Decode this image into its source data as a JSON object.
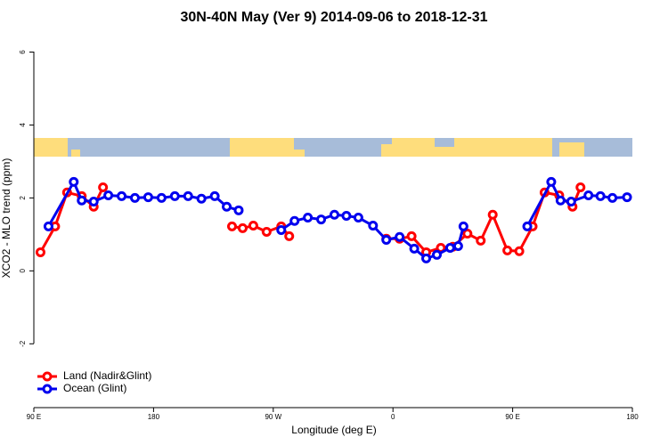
{
  "chart_data": {
    "type": "line",
    "title": "30N-40N May (Ver 9)   2014-09-06 to 2018-12-31",
    "x_label": "Longitude (deg E)",
    "y_label": "XCO2 - MLO trend (ppm)",
    "xlim": [
      90,
      540
    ],
    "ylim": [
      -3.75,
      6.5
    ],
    "xticks": [
      {
        "value": 90,
        "label": "90 E"
      },
      180,
      {
        "value": 270,
        "label": "90 W"
      },
      {
        "value": 360,
        "label": "0"
      },
      {
        "value": 450,
        "label": "90 E"
      },
      {
        "value": 540,
        "label": "180"
      }
    ],
    "yticks": [
      -2,
      0,
      2,
      4,
      6
    ],
    "legend": "bottom-left",
    "series": [
      {
        "name": "Land (Nadir&Glint)",
        "color": "#ff0000",
        "x": [
          95,
          106,
          115,
          126,
          135,
          142,
          null,
          239,
          247,
          255,
          265,
          276,
          282,
          null,
          355,
          365,
          374,
          385,
          396,
          405,
          416,
          426,
          435,
          446,
          455,
          465,
          474,
          485,
          495,
          501
        ],
        "values": [
          0.51,
          1.22,
          2.15,
          2.05,
          1.76,
          2.29,
          null,
          1.22,
          1.17,
          1.24,
          1.07,
          1.22,
          0.95,
          null,
          0.88,
          0.88,
          0.95,
          0.51,
          0.63,
          0.66,
          1.02,
          0.83,
          1.54,
          0.56,
          0.54,
          1.22,
          2.15,
          2.07,
          1.76,
          2.29
        ]
      },
      {
        "name": "Ocean (Glint)",
        "color": "#0000ee",
        "x": [
          101,
          120,
          126,
          135,
          146,
          156,
          166,
          176,
          186,
          196,
          206,
          216,
          226,
          235,
          244,
          null,
          276,
          286,
          296,
          306,
          316,
          325,
          334,
          345,
          355,
          365,
          376,
          385,
          393,
          403,
          409,
          413,
          null,
          461,
          479,
          486,
          494,
          507,
          516,
          525,
          536
        ],
        "values": [
          1.22,
          2.44,
          1.93,
          1.9,
          2.07,
          2.05,
          2.0,
          2.02,
          2.0,
          2.05,
          2.05,
          1.98,
          2.05,
          1.76,
          1.66,
          null,
          1.12,
          1.37,
          1.46,
          1.41,
          1.54,
          1.51,
          1.46,
          1.24,
          0.85,
          0.93,
          0.61,
          0.34,
          0.44,
          0.63,
          0.68,
          1.22,
          null,
          1.22,
          2.44,
          1.93,
          1.9,
          2.07,
          2.05,
          2.0,
          2.02
        ]
      }
    ]
  }
}
